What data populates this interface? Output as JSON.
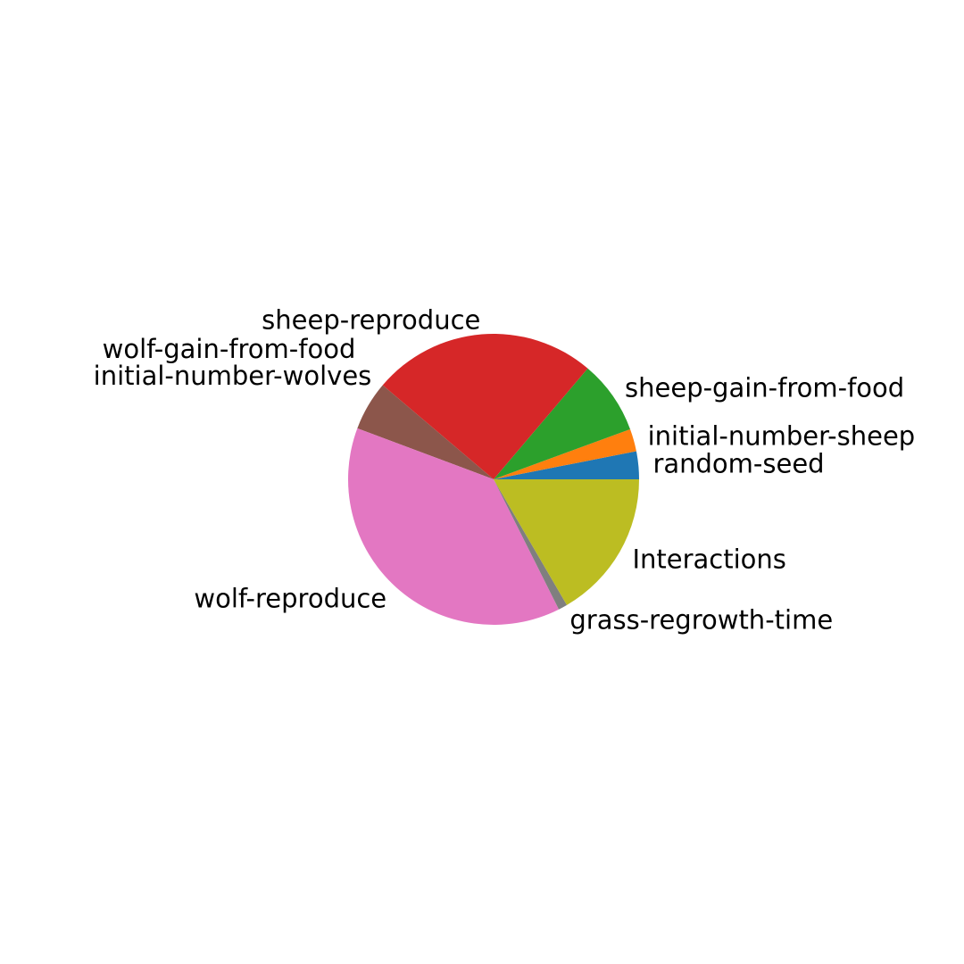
{
  "chart_data": {
    "type": "pie",
    "title": "",
    "start_angle_deg": 0,
    "direction": "counterclockwise",
    "slices": [
      {
        "label": "random-seed",
        "value": 3.1,
        "color": "#1f77b4"
      },
      {
        "label": "initial-number-sheep",
        "value": 2.5,
        "color": "#ff7f0e"
      },
      {
        "label": "sheep-gain-from-food",
        "value": 8.2,
        "color": "#2ca02c"
      },
      {
        "label": "sheep-reproduce",
        "value": 25.0,
        "color": "#d62728"
      },
      {
        "label": "initial-number-wolves",
        "value": 0.0,
        "color": "#9467bd"
      },
      {
        "label": "wolf-gain-from-food",
        "value": 5.5,
        "color": "#8c564b"
      },
      {
        "label": "wolf-reproduce",
        "value": 38.1,
        "color": "#e377c2"
      },
      {
        "label": "grass-regrowth-time",
        "value": 1.0,
        "color": "#7f7f7f"
      },
      {
        "label": "Interactions",
        "value": 16.6,
        "color": "#bcbd22"
      }
    ]
  }
}
